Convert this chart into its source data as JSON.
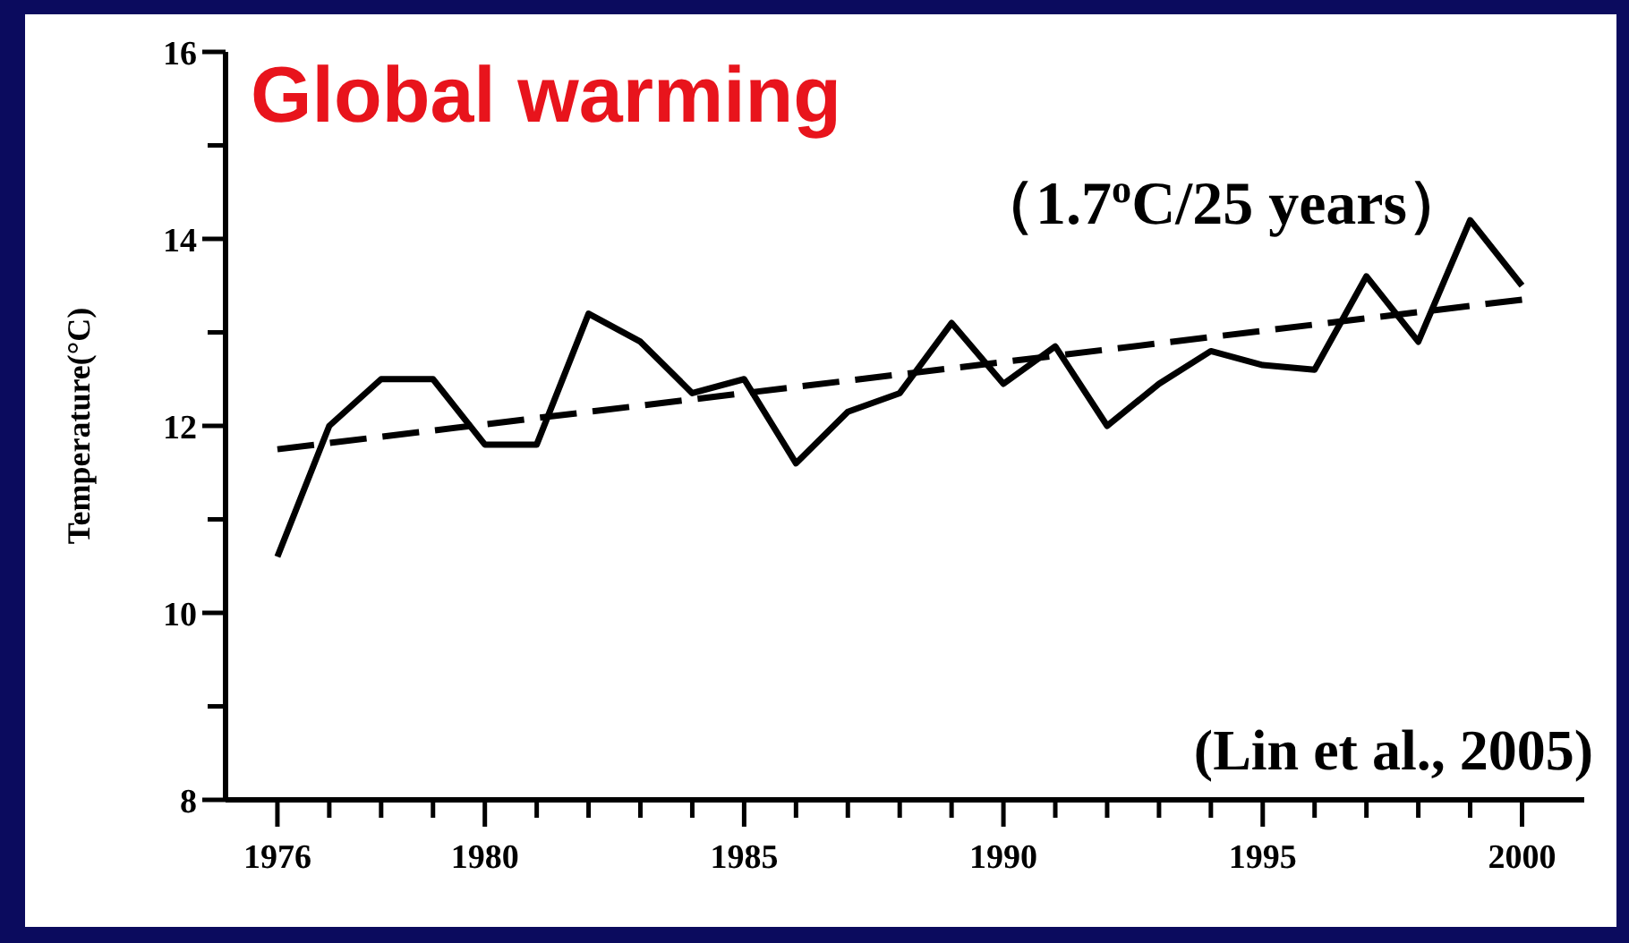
{
  "chart_data": {
    "type": "line",
    "title": "Global warming",
    "subtitle": "（1.7$^{o}$C/25 years）",
    "ylabel": "Temperature(°C)",
    "annotations": [
      "(Lin et al., 2005)"
    ],
    "x": [
      1976,
      1977,
      1978,
      1979,
      1980,
      1981,
      1982,
      1983,
      1984,
      1985,
      1986,
      1987,
      1988,
      1989,
      1990,
      1991,
      1992,
      1993,
      1994,
      1995,
      1996,
      1997,
      1998,
      1999,
      2000
    ],
    "series": [
      {
        "color": "#000000",
        "line_style": "solid",
        "values": [
          10.6,
          12.0,
          12.5,
          12.5,
          11.8,
          11.8,
          13.2,
          12.9,
          12.35,
          12.5,
          11.6,
          12.15,
          12.35,
          13.1,
          12.45,
          12.85,
          12.0,
          12.45,
          12.8,
          12.65,
          12.6,
          13.6,
          12.9,
          14.2,
          13.5
        ]
      },
      {
        "type": "line",
        "color": "#000000",
        "line_style": "dashed",
        "x": [
          1976,
          2000
        ],
        "values": [
          11.75,
          13.35
        ]
      }
    ],
    "xlim": [
      1975,
      2001.2
    ],
    "ylim": [
      8,
      16
    ],
    "xticks": [
      1976,
      {
        "value": 1977,
        "label": null
      },
      {
        "value": 1978,
        "label": null
      },
      {
        "value": 1979,
        "label": null
      },
      1980,
      {
        "value": 1981,
        "label": null
      },
      {
        "value": 1982,
        "label": null
      },
      {
        "value": 1983,
        "label": null
      },
      {
        "value": 1984,
        "label": null
      },
      1985,
      {
        "value": 1986,
        "label": null
      },
      {
        "value": 1987,
        "label": null
      },
      {
        "value": 1988,
        "label": null
      },
      {
        "value": 1989,
        "label": null
      },
      1990,
      {
        "value": 1991,
        "label": null
      },
      {
        "value": 1992,
        "label": null
      },
      {
        "value": 1993,
        "label": null
      },
      {
        "value": 1994,
        "label": null
      },
      1995,
      {
        "value": 1996,
        "label": null
      },
      {
        "value": 1997,
        "label": null
      },
      {
        "value": 1998,
        "label": null
      },
      {
        "value": 1999,
        "label": null
      },
      2000
    ],
    "yticks": [
      8,
      {
        "value": 9,
        "label": null
      },
      10,
      {
        "value": 11,
        "label": null
      },
      12,
      {
        "value": 13,
        "label": null
      },
      14,
      {
        "value": 15,
        "label": null
      },
      16
    ],
    "grid": false,
    "marker": "none"
  }
}
